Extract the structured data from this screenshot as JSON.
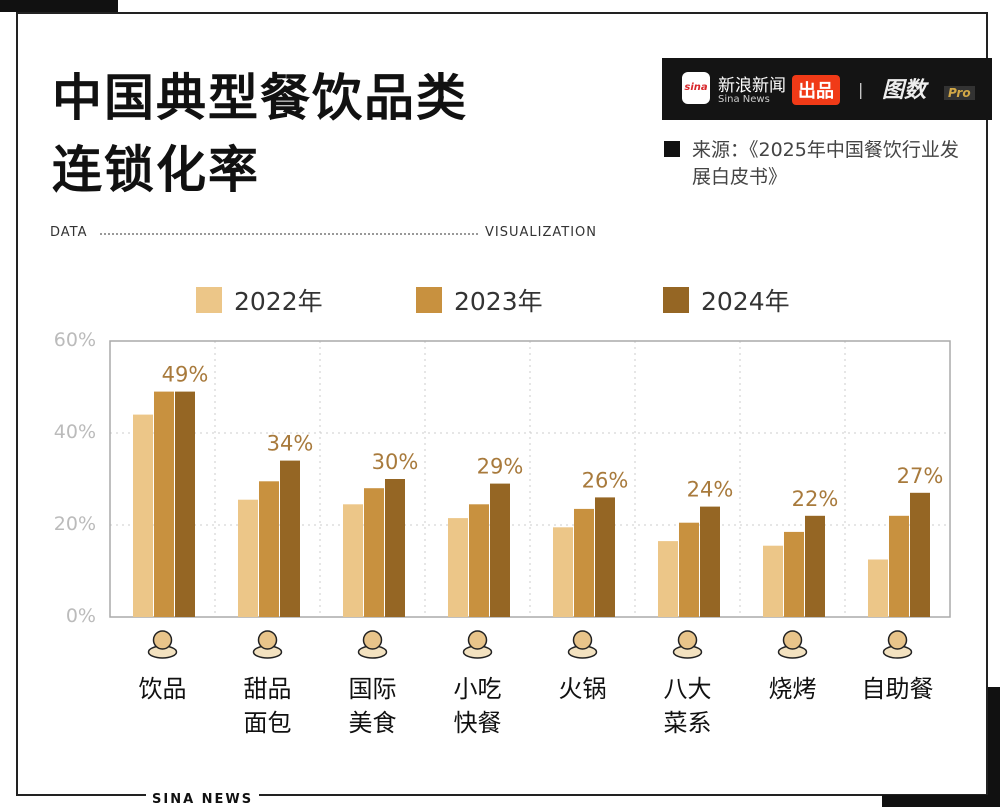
{
  "header": {
    "title_line1": "中国典型餐饮品类",
    "title_line2": "连锁化率",
    "data_label": "DATA",
    "visualization_label": "VISUALIZATION"
  },
  "brand": {
    "logo_text": "sina",
    "sina_cn": "新浪新闻",
    "sina_en": "Sina News",
    "badge": "出品",
    "separator": "|",
    "tushu": "图数",
    "pro": "Pro"
  },
  "source": "来源：《2025年中国餐饮行业发展白皮书》",
  "footer": "SINA NEWS",
  "colors": {
    "2022": "#ecc688",
    "2023": "#c8913f",
    "2024": "#956624",
    "label": "#a87a3c"
  },
  "chart_data": {
    "type": "bar",
    "categories": [
      "饮品",
      "甜品面包",
      "国际美食",
      "小吃快餐",
      "火锅",
      "八大菜系",
      "烧烤",
      "自助餐"
    ],
    "category_lines": [
      [
        "饮品"
      ],
      [
        "甜品",
        "面包"
      ],
      [
        "国际",
        "美食"
      ],
      [
        "小吃",
        "快餐"
      ],
      [
        "火锅"
      ],
      [
        "八大",
        "菜系"
      ],
      [
        "烧烤"
      ],
      [
        "自助餐"
      ]
    ],
    "category_icons": [
      "bubble-tea-icon",
      "cupcake-icon",
      "sushi-icon",
      "dumplings-icon",
      "hotpot-icon",
      "soup-pot-icon",
      "skewer-icon",
      "buffet-plate-icon"
    ],
    "series": [
      {
        "name": "2022年",
        "values": [
          44,
          25.5,
          24.5,
          21.5,
          19.5,
          16.5,
          15.5,
          12.5
        ]
      },
      {
        "name": "2023年",
        "values": [
          49,
          29.5,
          28,
          24.5,
          23.5,
          20.5,
          18.5,
          22
        ]
      },
      {
        "name": "2024年",
        "values": [
          49,
          34,
          30,
          29,
          26,
          24,
          22,
          27
        ]
      }
    ],
    "data_labels": [
      "49%",
      "34%",
      "30%",
      "29%",
      "26%",
      "24%",
      "22%",
      "27%"
    ],
    "yticks": [
      "0%",
      "20%",
      "40%",
      "60%"
    ],
    "ylim": [
      0,
      60
    ],
    "grid": true,
    "legend_position": "top"
  }
}
